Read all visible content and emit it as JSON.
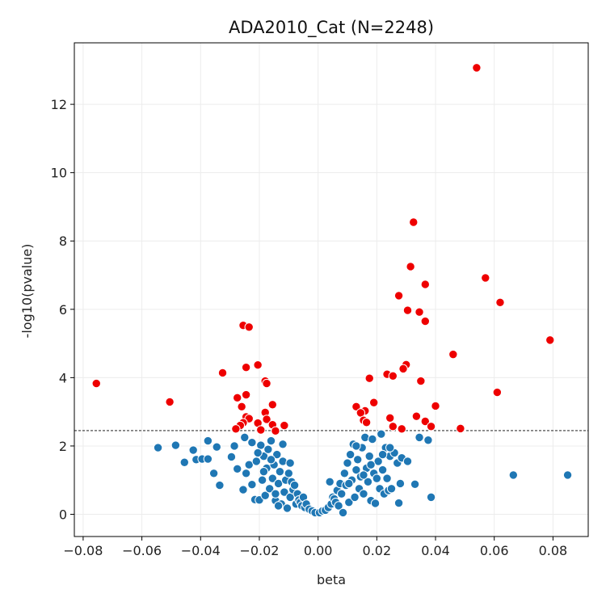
{
  "chart_data": {
    "type": "scatter",
    "title": "ADA2010_Cat (N=2248)",
    "xlabel": "beta",
    "ylabel": "-log10(pvalue)",
    "xlim": [
      -0.083,
      0.092
    ],
    "ylim": [
      -0.65,
      13.8
    ],
    "x_ticks": [
      -0.08,
      -0.06,
      -0.04,
      -0.02,
      0.0,
      0.02,
      0.04,
      0.06,
      0.08
    ],
    "x_tick_labels": [
      "−0.08",
      "−0.06",
      "−0.04",
      "−0.02",
      "0.00",
      "0.02",
      "0.04",
      "0.06",
      "0.08"
    ],
    "y_ticks": [
      0,
      2,
      4,
      6,
      8,
      10,
      12
    ],
    "y_tick_labels": [
      "0",
      "2",
      "4",
      "6",
      "8",
      "10",
      "12"
    ],
    "grid": true,
    "threshold": 2.45,
    "colors": {
      "significant": "#ee0000",
      "not_significant": "#1f77b4",
      "threshold_line": "#000000",
      "grid": "#ececec"
    },
    "significant_points": [
      [
        0.054,
        13.07
      ],
      [
        0.0325,
        8.55
      ],
      [
        0.0315,
        7.25
      ],
      [
        0.057,
        6.92
      ],
      [
        0.0365,
        6.73
      ],
      [
        0.0275,
        6.4
      ],
      [
        0.062,
        6.2
      ],
      [
        0.0305,
        5.97
      ],
      [
        0.0345,
        5.92
      ],
      [
        0.0365,
        5.65
      ],
      [
        0.079,
        5.1
      ],
      [
        0.046,
        4.68
      ],
      [
        0.03,
        4.38
      ],
      [
        0.029,
        4.26
      ],
      [
        0.0235,
        4.1
      ],
      [
        0.0255,
        4.05
      ],
      [
        0.0175,
        3.98
      ],
      [
        0.035,
        3.9
      ],
      [
        0.061,
        3.57
      ],
      [
        0.019,
        3.27
      ],
      [
        0.04,
        3.17
      ],
      [
        0.013,
        3.15
      ],
      [
        0.016,
        3.03
      ],
      [
        0.0145,
        2.97
      ],
      [
        0.0335,
        2.87
      ],
      [
        0.0245,
        2.82
      ],
      [
        0.0365,
        2.72
      ],
      [
        0.0155,
        2.75
      ],
      [
        0.0165,
        2.69
      ],
      [
        0.0255,
        2.57
      ],
      [
        0.0385,
        2.57
      ],
      [
        0.0485,
        2.51
      ],
      [
        0.0285,
        2.5
      ],
      [
        -0.0755,
        3.83
      ],
      [
        -0.0505,
        3.29
      ],
      [
        -0.0255,
        5.53
      ],
      [
        -0.0235,
        5.48
      ],
      [
        -0.0205,
        4.37
      ],
      [
        -0.0245,
        4.3
      ],
      [
        -0.0325,
        4.14
      ],
      [
        -0.018,
        3.9
      ],
      [
        -0.0175,
        3.83
      ],
      [
        -0.0245,
        3.5
      ],
      [
        -0.0275,
        3.41
      ],
      [
        -0.0155,
        3.21
      ],
      [
        -0.026,
        3.15
      ],
      [
        -0.018,
        2.98
      ],
      [
        -0.0245,
        2.85
      ],
      [
        -0.0235,
        2.8
      ],
      [
        -0.0175,
        2.78
      ],
      [
        -0.0255,
        2.68
      ],
      [
        -0.0205,
        2.67
      ],
      [
        -0.0155,
        2.62
      ],
      [
        -0.0265,
        2.6
      ],
      [
        -0.0115,
        2.6
      ],
      [
        -0.028,
        2.5
      ],
      [
        -0.0195,
        2.47
      ],
      [
        -0.0145,
        2.44
      ]
    ],
    "nonsignificant_points": [
      [
        -0.0545,
        1.95
      ],
      [
        -0.0485,
        2.02
      ],
      [
        -0.0455,
        1.52
      ],
      [
        -0.0425,
        1.88
      ],
      [
        -0.0415,
        1.6
      ],
      [
        -0.0395,
        1.62
      ],
      [
        -0.0375,
        2.15
      ],
      [
        -0.0375,
        1.62
      ],
      [
        -0.0355,
        1.2
      ],
      [
        -0.0345,
        1.97
      ],
      [
        -0.0335,
        0.85
      ],
      [
        -0.0295,
        1.68
      ],
      [
        -0.0285,
        2.0
      ],
      [
        -0.0275,
        1.33
      ],
      [
        -0.0255,
        0.72
      ],
      [
        -0.025,
        2.25
      ],
      [
        -0.0245,
        1.2
      ],
      [
        -0.0235,
        1.45
      ],
      [
        -0.0225,
        0.87
      ],
      [
        -0.0215,
        0.43
      ],
      [
        -0.021,
        1.55
      ],
      [
        -0.02,
        0.42
      ],
      [
        -0.0195,
        2.02
      ],
      [
        -0.019,
        1.0
      ],
      [
        -0.0185,
        1.7
      ],
      [
        -0.018,
        0.55
      ],
      [
        -0.0175,
        1.35
      ],
      [
        -0.017,
        1.9
      ],
      [
        -0.0165,
        0.75
      ],
      [
        -0.016,
        2.15
      ],
      [
        -0.0155,
        1.05
      ],
      [
        -0.015,
        1.45
      ],
      [
        -0.0145,
        0.4
      ],
      [
        -0.014,
        1.75
      ],
      [
        -0.0135,
        0.9
      ],
      [
        -0.013,
        1.25
      ],
      [
        -0.0125,
        0.3
      ],
      [
        -0.012,
        1.55
      ],
      [
        -0.0115,
        0.65
      ],
      [
        -0.011,
        1.0
      ],
      [
        -0.0105,
        0.18
      ],
      [
        -0.01,
        1.2
      ],
      [
        -0.0095,
        0.5
      ],
      [
        -0.009,
        0.95
      ],
      [
        -0.0085,
        0.72
      ],
      [
        -0.008,
        0.85
      ],
      [
        -0.0075,
        0.3
      ],
      [
        -0.007,
        0.6
      ],
      [
        -0.0065,
        0.42
      ],
      [
        -0.006,
        0.35
      ],
      [
        -0.0055,
        0.25
      ],
      [
        -0.005,
        0.5
      ],
      [
        -0.0045,
        0.2
      ],
      [
        -0.004,
        0.3
      ],
      [
        -0.003,
        0.15
      ],
      [
        -0.002,
        0.1
      ],
      [
        -0.001,
        0.05
      ],
      [
        -0.0225,
        2.1
      ],
      [
        -0.0205,
        1.8
      ],
      [
        -0.0185,
        1.25
      ],
      [
        -0.016,
        1.6
      ],
      [
        -0.012,
        2.05
      ],
      [
        -0.0145,
        0.6
      ],
      [
        -0.0095,
        1.5
      ],
      [
        -0.0135,
        0.25
      ],
      [
        0.0005,
        0.05
      ],
      [
        0.0015,
        0.1
      ],
      [
        0.0025,
        0.12
      ],
      [
        0.0035,
        0.2
      ],
      [
        0.004,
        0.95
      ],
      [
        0.0045,
        0.3
      ],
      [
        0.005,
        0.5
      ],
      [
        0.0055,
        0.45
      ],
      [
        0.006,
        0.35
      ],
      [
        0.0065,
        0.7
      ],
      [
        0.007,
        0.25
      ],
      [
        0.0075,
        0.9
      ],
      [
        0.008,
        0.6
      ],
      [
        0.0085,
        0.05
      ],
      [
        0.009,
        1.2
      ],
      [
        0.0095,
        0.85
      ],
      [
        0.01,
        1.5
      ],
      [
        0.0105,
        0.35
      ],
      [
        0.011,
        1.75
      ],
      [
        0.0115,
        1.0
      ],
      [
        0.012,
        2.05
      ],
      [
        0.0125,
        0.5
      ],
      [
        0.013,
        1.3
      ],
      [
        0.0135,
        1.6
      ],
      [
        0.014,
        0.75
      ],
      [
        0.0145,
        1.1
      ],
      [
        0.015,
        1.95
      ],
      [
        0.0155,
        0.6
      ],
      [
        0.016,
        2.25
      ],
      [
        0.0165,
        1.35
      ],
      [
        0.017,
        0.95
      ],
      [
        0.0175,
        1.7
      ],
      [
        0.018,
        0.4
      ],
      [
        0.0185,
        2.2
      ],
      [
        0.019,
        1.2
      ],
      [
        0.0195,
        0.32
      ],
      [
        0.02,
        1.05
      ],
      [
        0.0205,
        1.55
      ],
      [
        0.021,
        0.75
      ],
      [
        0.0215,
        2.35
      ],
      [
        0.022,
        1.3
      ],
      [
        0.0225,
        0.6
      ],
      [
        0.023,
        1.95
      ],
      [
        0.0235,
        1.05
      ],
      [
        0.024,
        0.7
      ],
      [
        0.0245,
        1.7
      ],
      [
        0.025,
        0.75
      ],
      [
        0.026,
        1.8
      ],
      [
        0.027,
        1.5
      ],
      [
        0.0275,
        0.33
      ],
      [
        0.028,
        0.9
      ],
      [
        0.0285,
        1.65
      ],
      [
        0.0305,
        1.55
      ],
      [
        0.033,
        0.88
      ],
      [
        0.0345,
        2.25
      ],
      [
        0.0375,
        2.17
      ],
      [
        0.0385,
        0.5
      ],
      [
        0.0665,
        1.15
      ],
      [
        0.085,
        1.15
      ],
      [
        0.013,
        2.0
      ],
      [
        0.018,
        1.45
      ],
      [
        0.022,
        1.75
      ],
      [
        0.0105,
        0.9
      ],
      [
        0.0155,
        1.15
      ],
      [
        0.0245,
        1.95
      ]
    ]
  }
}
